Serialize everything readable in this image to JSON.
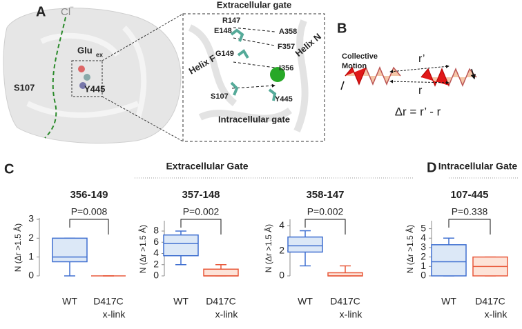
{
  "panel_a": {
    "label": "A",
    "cl": "Cl",
    "cl_sup": "−",
    "glu": "Glu",
    "glu_sub": "ex",
    "s107": "S107",
    "y445": "Y445",
    "inset": {
      "top": "Extracellular gate",
      "bottom": "Intracellular gate",
      "r147": "R147",
      "e148": "E148",
      "g149": "G149",
      "a358": "A358",
      "f357": "F357",
      "i356": "I356",
      "s107": "S107",
      "y445": "Y445",
      "helix_f": "Helix F",
      "helix_n": "Helix N"
    }
  },
  "panel_b": {
    "label": "B",
    "motion_1": "Collective",
    "motion_2": "Motion",
    "r_prime": "r’",
    "r": "r",
    "formula": "Δr = r’ - r"
  },
  "panel_c": {
    "label": "C",
    "header": "Extracellular Gate"
  },
  "panel_d": {
    "label": "D",
    "header": "Intracellular Gate"
  },
  "chart_data": [
    {
      "type": "box",
      "title": "356-149",
      "annotation": "P=0.008",
      "ylabel": "N (Δr >1.5 Å)",
      "categories": [
        [
          "WT"
        ],
        [
          "D417C",
          "x-link"
        ]
      ],
      "ylim": [
        0,
        3
      ],
      "yticks": [
        0,
        1,
        2,
        3
      ],
      "boxes": [
        {
          "min": 0,
          "q1": 0.75,
          "median": 1,
          "q3": 2,
          "max": 2,
          "color": "#3f6fd0",
          "fill": "#dce8f7"
        },
        {
          "min": 0,
          "q1": 0,
          "median": 0,
          "q3": 0,
          "max": 0,
          "color": "#e8583a",
          "fill": "#fde3d8"
        }
      ]
    },
    {
      "type": "box",
      "title": "357-148",
      "annotation": "P=0.002",
      "ylabel": "N (Δr >1.5 Å)",
      "categories": [
        [
          "WT"
        ],
        [
          "D417C",
          "x-link"
        ]
      ],
      "ylim": [
        0,
        9.6
      ],
      "yticks": [
        0,
        2,
        4,
        6,
        8
      ],
      "boxes": [
        {
          "min": 2,
          "q1": 3.6,
          "median": 5.8,
          "q3": 7.3,
          "max": 8,
          "color": "#3f6fd0",
          "fill": "#dce8f7"
        },
        {
          "min": 0,
          "q1": 0,
          "median": 0,
          "q3": 1.2,
          "max": 2,
          "color": "#e8583a",
          "fill": "#fde3d8"
        }
      ]
    },
    {
      "type": "box",
      "title": "358-147",
      "annotation": "P=0.002",
      "ylabel": "N (Δr >1.5 Å)",
      "categories": [
        [
          "WT"
        ],
        [
          "D417C",
          "x-link"
        ]
      ],
      "ylim": [
        0,
        4.4
      ],
      "yticks": [
        0,
        2,
        4
      ],
      "boxes": [
        {
          "min": 0.8,
          "q1": 1.9,
          "median": 2.4,
          "q3": 3.1,
          "max": 3.6,
          "color": "#3f6fd0",
          "fill": "#dce8f7"
        },
        {
          "min": 0,
          "q1": 0,
          "median": 0,
          "q3": 0.25,
          "max": 0.8,
          "color": "#e8583a",
          "fill": "#fde3d8"
        }
      ]
    },
    {
      "type": "box",
      "title": "107-445",
      "annotation": "P=0.338",
      "ylabel": "N (Δr >1.5 Å)",
      "categories": [
        [
          "WT"
        ],
        [
          "D417C",
          "x-link"
        ]
      ],
      "ylim": [
        0,
        5.7
      ],
      "yticks": [
        0,
        1,
        2,
        3,
        4,
        5
      ],
      "boxes": [
        {
          "min": 0,
          "q1": 0,
          "median": 1.5,
          "q3": 3.3,
          "max": 4,
          "color": "#3f6fd0",
          "fill": "#dce8f7"
        },
        {
          "min": 0,
          "q1": 0,
          "median": 1,
          "q3": 2,
          "max": 2,
          "color": "#e8583a",
          "fill": "#fde3d8"
        }
      ]
    }
  ]
}
